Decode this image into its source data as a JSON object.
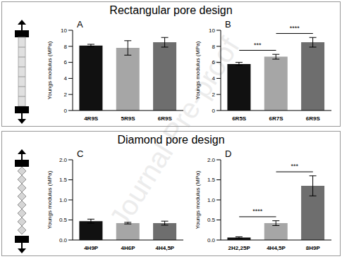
{
  "section_titles": [
    "Rectangular pore design",
    "Diamond pore design"
  ],
  "watermark": "Journal Pre-proof",
  "chart_data": [
    {
      "type": "bar",
      "title": "A",
      "ylabel": "Youngs modulus (MPa)",
      "categories": [
        "4R9S",
        "5R9S",
        "6R9S"
      ],
      "values": [
        8.1,
        7.8,
        8.5
      ],
      "errors": [
        0.15,
        0.9,
        0.6
      ],
      "colors": [
        "#111111",
        "#a6a6a6",
        "#6e6e6e"
      ],
      "ylim": [
        0,
        10
      ],
      "yticks": [
        0,
        2,
        4,
        6,
        8,
        10
      ],
      "significance": []
    },
    {
      "type": "bar",
      "title": "B",
      "ylabel": "Youngs modulus (MPa)",
      "categories": [
        "6R5S",
        "6R7S",
        "6R9S"
      ],
      "values": [
        5.8,
        6.7,
        8.5
      ],
      "errors": [
        0.2,
        0.3,
        0.6
      ],
      "colors": [
        "#111111",
        "#a6a6a6",
        "#6e6e6e"
      ],
      "ylim": [
        0,
        10
      ],
      "yticks": [
        0,
        2,
        4,
        6,
        8,
        10
      ],
      "significance": [
        {
          "from": 0,
          "to": 1,
          "label": "***"
        },
        {
          "from": 1,
          "to": 2,
          "label": "****"
        }
      ]
    },
    {
      "type": "bar",
      "title": "C",
      "ylabel": "Youngs modulus (MPa)",
      "categories": [
        "4H9P",
        "4H6P",
        "4H4,5P"
      ],
      "values": [
        0.47,
        0.42,
        0.42
      ],
      "errors": [
        0.05,
        0.02,
        0.05
      ],
      "colors": [
        "#111111",
        "#a6a6a6",
        "#6e6e6e"
      ],
      "ylim": [
        0,
        2
      ],
      "yticks": [
        {
          "value": 0,
          "label": "0.0"
        },
        {
          "value": 0.5,
          "label": "0.5"
        },
        {
          "value": 1,
          "label": "1.0"
        },
        {
          "value": 1.5,
          "label": "1.5"
        },
        {
          "value": 2,
          "label": "2.0"
        }
      ],
      "significance": []
    },
    {
      "type": "bar",
      "title": "D",
      "ylabel": "Youngs modulus (MPa)",
      "categories": [
        "2H2,25P",
        "4H4,5P",
        "8H9P"
      ],
      "values": [
        0.06,
        0.42,
        1.35
      ],
      "errors": [
        0.02,
        0.06,
        0.25
      ],
      "colors": [
        "#111111",
        "#a6a6a6",
        "#6e6e6e"
      ],
      "ylim": [
        0,
        2
      ],
      "yticks": [
        {
          "value": 0,
          "label": "0.0"
        },
        {
          "value": 0.5,
          "label": "0.5"
        },
        {
          "value": 1,
          "label": "1.0"
        },
        {
          "value": 1.5,
          "label": "1.5"
        },
        {
          "value": 2,
          "label": "2.0"
        }
      ],
      "significance": [
        {
          "from": 0,
          "to": 1,
          "label": "****"
        },
        {
          "from": 1,
          "to": 2,
          "label": "***"
        }
      ]
    }
  ]
}
